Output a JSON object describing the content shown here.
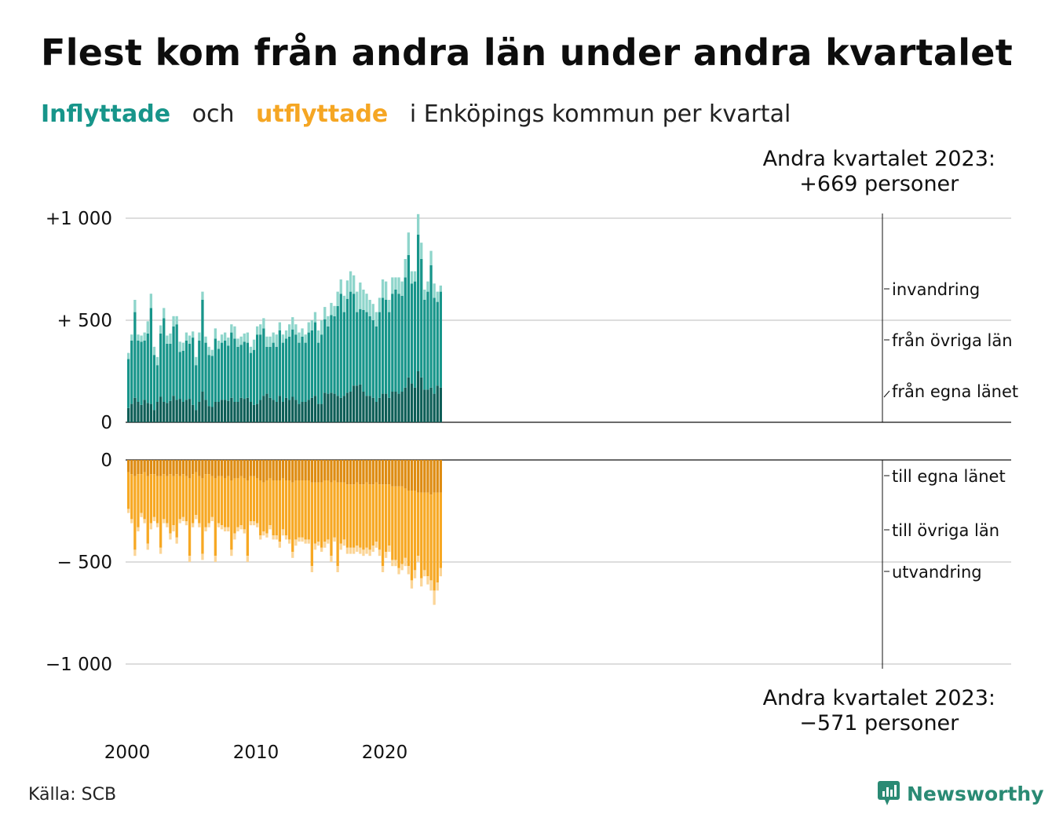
{
  "title": "Flest kom från andra län under andra kvartalet",
  "subtitle": {
    "in_word": "Inflyttade",
    "and_word": "och",
    "out_word": "utflyttade",
    "rest": "i Enköpings  kommun  per  kvartal"
  },
  "annotation_top": {
    "line1": "Andra kvartalet 2023:",
    "line2": "+669 personer"
  },
  "annotation_bottom": {
    "line1": "Andra kvartalet 2023:",
    "line2": "−571 personer"
  },
  "source": "Källa: SCB",
  "logo_text": "Newsworthy",
  "colors": {
    "in_same": "#0e5e57",
    "in_other": "#17958a",
    "in_abroad": "#8ed5cb",
    "out_same": "#de8c12",
    "out_other": "#f7a823",
    "out_abroad": "#fbd597",
    "grid": "#dddddd",
    "axis": "#111111",
    "logo": "#2a8a74"
  },
  "chart_data": {
    "type": "bar",
    "stacked": true,
    "title": "Flest kom från andra län under andra kvartalet",
    "x_ticks": [
      "2000",
      "2010",
      "2020"
    ],
    "x_start": "2000 Q1",
    "x_end": "2023 Q2",
    "y_ticks_top": [
      {
        "value": 1000,
        "label": "+1 000"
      },
      {
        "value": 500,
        "label": "+  500"
      },
      {
        "value": 0,
        "label": "0"
      }
    ],
    "y_ticks_bottom": [
      {
        "value": 0,
        "label": "0"
      },
      {
        "value": -500,
        "label": "−  500"
      },
      {
        "value": -1000,
        "label": "−1 000"
      }
    ],
    "ylim_in": [
      0,
      1000
    ],
    "ylim_out": [
      -1000,
      0
    ],
    "grid": true,
    "in_series": [
      {
        "name": "från egna länet",
        "values": [
          70,
          90,
          120,
          100,
          85,
          110,
          95,
          90,
          60,
          100,
          125,
          100,
          95,
          105,
          130,
          110,
          115,
          100,
          110,
          115,
          85,
          60,
          100,
          150,
          110,
          80,
          75,
          100,
          100,
          110,
          110,
          105,
          120,
          100,
          100,
          120,
          115,
          120,
          100,
          85,
          90,
          110,
          130,
          140,
          120,
          110,
          100,
          130,
          100,
          120,
          110,
          125,
          110,
          90,
          100,
          100,
          110,
          120,
          130,
          90,
          90,
          145,
          140,
          145,
          140,
          130,
          120,
          130,
          145,
          150,
          180,
          180,
          185,
          150,
          130,
          130,
          120,
          100,
          120,
          140,
          140,
          120,
          150,
          150,
          140,
          150,
          170,
          220,
          190,
          170,
          250,
          220,
          160,
          160,
          170,
          140,
          180,
          170
        ]
      },
      {
        "name": "från övriga län",
        "values": [
          240,
          310,
          420,
          300,
          310,
          290,
          340,
          470,
          270,
          180,
          310,
          410,
          290,
          280,
          340,
          370,
          230,
          250,
          290,
          270,
          330,
          220,
          300,
          450,
          280,
          250,
          250,
          310,
          260,
          280,
          290,
          270,
          320,
          310,
          270,
          260,
          280,
          270,
          240,
          270,
          340,
          320,
          330,
          230,
          250,
          280,
          270,
          320,
          290,
          290,
          310,
          330,
          320,
          300,
          320,
          290,
          330,
          330,
          360,
          300,
          340,
          360,
          330,
          380,
          380,
          440,
          510,
          410,
          460,
          490,
          450,
          360,
          370,
          400,
          410,
          390,
          380,
          370,
          420,
          470,
          460,
          420,
          480,
          500,
          490,
          470,
          540,
          600,
          490,
          520,
          670,
          580,
          440,
          480,
          600,
          470,
          410,
          470
        ]
      },
      {
        "name": "invandring",
        "values": [
          30,
          30,
          60,
          30,
          30,
          40,
          60,
          70,
          40,
          40,
          40,
          50,
          40,
          50,
          50,
          40,
          50,
          40,
          40,
          40,
          30,
          40,
          40,
          40,
          30,
          40,
          30,
          50,
          40,
          40,
          40,
          40,
          40,
          60,
          40,
          40,
          40,
          50,
          30,
          50,
          40,
          50,
          50,
          50,
          50,
          50,
          60,
          40,
          40,
          40,
          60,
          60,
          50,
          50,
          40,
          40,
          50,
          50,
          50,
          60,
          70,
          60,
          50,
          60,
          50,
          70,
          70,
          80,
          90,
          100,
          90,
          100,
          130,
          100,
          90,
          80,
          80,
          70,
          70,
          90,
          90,
          60,
          80,
          60,
          80,
          70,
          90,
          110,
          60,
          50,
          100,
          80,
          50,
          50,
          70,
          70,
          50,
          30
        ]
      }
    ],
    "out_series": [
      {
        "name": "till egna länet",
        "values": [
          60,
          70,
          80,
          70,
          70,
          60,
          80,
          70,
          70,
          80,
          80,
          70,
          80,
          70,
          80,
          70,
          80,
          70,
          80,
          90,
          70,
          60,
          80,
          90,
          70,
          70,
          80,
          90,
          80,
          80,
          90,
          80,
          100,
          90,
          90,
          80,
          90,
          100,
          80,
          80,
          90,
          100,
          110,
          100,
          90,
          100,
          100,
          100,
          90,
          100,
          100,
          110,
          100,
          100,
          100,
          100,
          100,
          110,
          110,
          110,
          110,
          100,
          100,
          110,
          100,
          110,
          110,
          110,
          120,
          120,
          120,
          110,
          120,
          120,
          110,
          120,
          120,
          110,
          120,
          120,
          120,
          120,
          130,
          130,
          130,
          130,
          140,
          150,
          150,
          150,
          160,
          160,
          160,
          160,
          170,
          160,
          160,
          160
        ]
      },
      {
        "name": "till övriga län",
        "values": [
          180,
          220,
          360,
          260,
          190,
          230,
          330,
          240,
          210,
          230,
          350,
          220,
          230,
          290,
          240,
          310,
          210,
          210,
          220,
          380,
          240,
          210,
          230,
          370,
          260,
          240,
          200,
          380,
          230,
          240,
          240,
          250,
          340,
          270,
          240,
          240,
          250,
          370,
          220,
          220,
          220,
          270,
          240,
          260,
          230,
          270,
          270,
          300,
          250,
          270,
          290,
          340,
          290,
          280,
          280,
          290,
          290,
          410,
          300,
          290,
          320,
          300,
          290,
          360,
          280,
          410,
          300,
          280,
          310,
          310,
          310,
          310,
          310,
          320,
          320,
          320,
          300,
          290,
          320,
          400,
          330,
          300,
          360,
          360,
          400,
          380,
          340,
          370,
          440,
          390,
          310,
          420,
          380,
          410,
          420,
          480,
          440,
          370
        ]
      },
      {
        "name": "utvandring",
        "values": [
          20,
          20,
          30,
          20,
          20,
          20,
          30,
          30,
          20,
          20,
          30,
          20,
          20,
          30,
          30,
          30,
          20,
          20,
          20,
          30,
          20,
          20,
          20,
          30,
          20,
          20,
          20,
          30,
          20,
          20,
          20,
          20,
          30,
          30,
          20,
          20,
          20,
          30,
          20,
          20,
          20,
          20,
          20,
          20,
          20,
          20,
          20,
          30,
          30,
          20,
          20,
          30,
          30,
          20,
          20,
          20,
          20,
          30,
          30,
          20,
          20,
          30,
          20,
          30,
          20,
          30,
          30,
          30,
          30,
          30,
          30,
          30,
          30,
          30,
          30,
          30,
          30,
          30,
          30,
          30,
          30,
          30,
          30,
          30,
          30,
          30,
          40,
          40,
          40,
          40,
          30,
          40,
          30,
          40,
          50,
          70,
          40,
          40
        ]
      }
    ],
    "series_labels": {
      "in": [
        "invandring",
        "från övriga län",
        "från egna länet"
      ],
      "out": [
        "till egna länet",
        "till övriga län",
        "utvandring"
      ]
    }
  }
}
